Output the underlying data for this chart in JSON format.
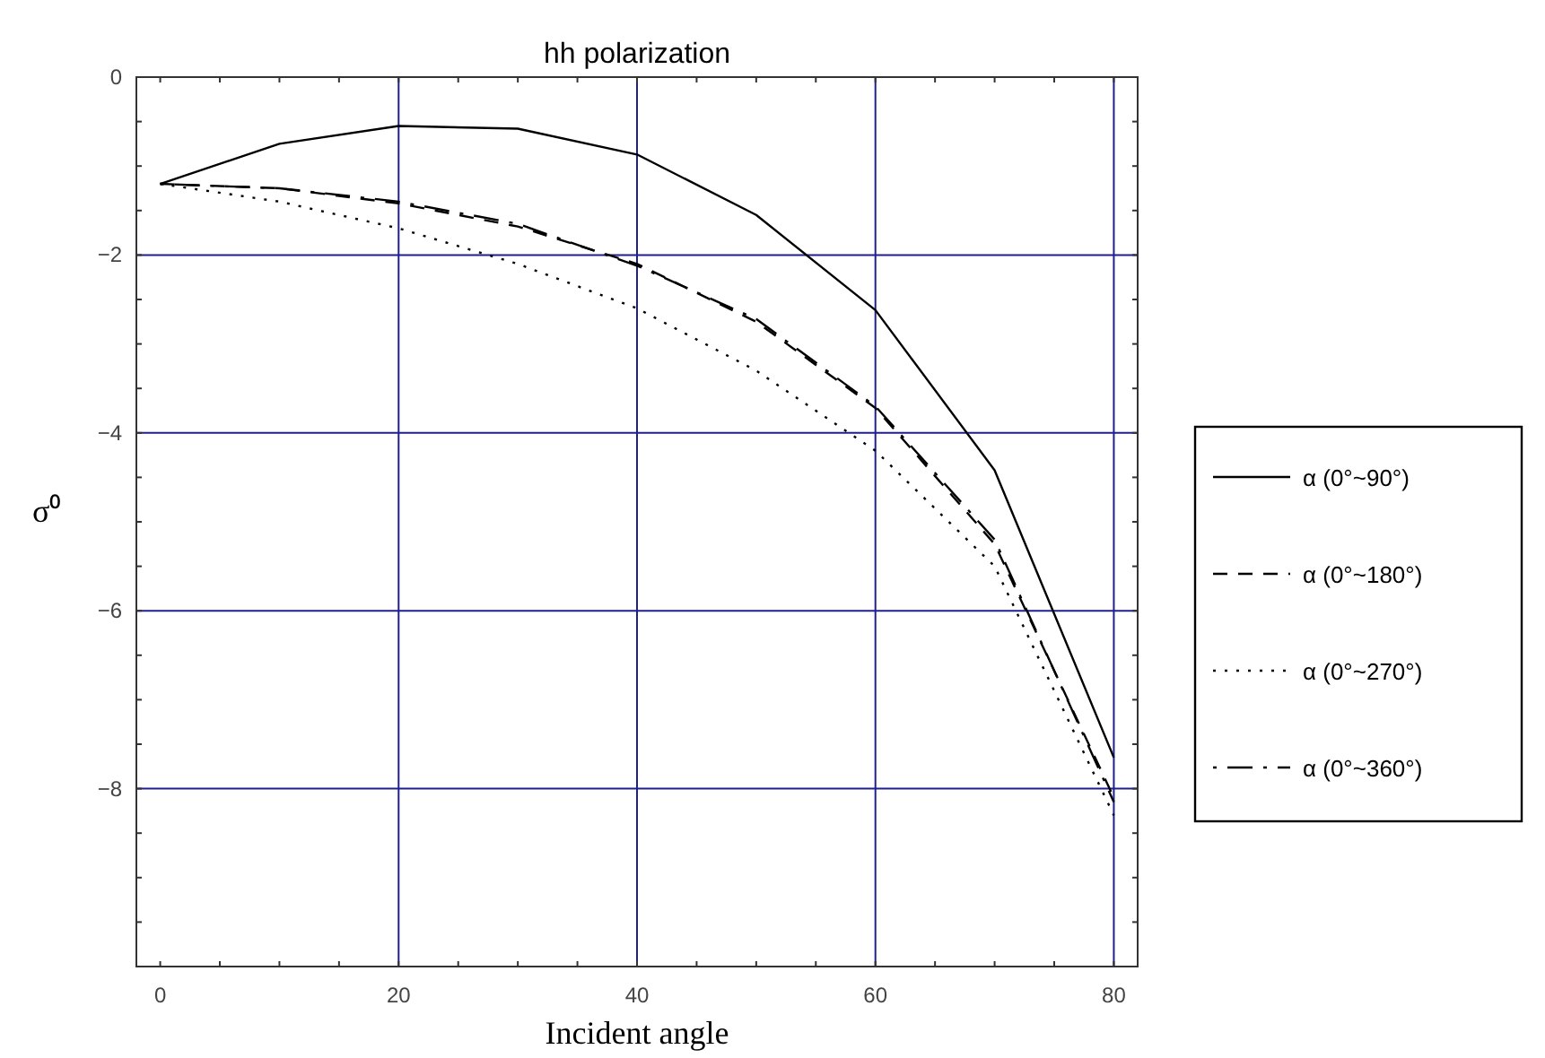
{
  "chart_data": {
    "type": "line",
    "title": "hh polarization",
    "xlabel": "Incident  angle",
    "ylabel": "σ⁰",
    "x": [
      0,
      10,
      20,
      30,
      40,
      50,
      60,
      70,
      80
    ],
    "series": [
      {
        "name": "α (0°~90°)",
        "color": "#000000",
        "line_style": "solid",
        "values": [
          -1.2,
          -0.75,
          -0.55,
          -0.58,
          -0.87,
          -1.55,
          -2.62,
          -4.42,
          -7.65
        ]
      },
      {
        "name": "α (0°~180°)",
        "color": "#000000",
        "line_style": "dashed",
        "values": [
          -1.2,
          -1.25,
          -1.42,
          -1.68,
          -2.1,
          -2.75,
          -3.72,
          -5.25,
          -8.1
        ]
      },
      {
        "name": "α (0°~270°)",
        "color": "#000000",
        "line_style": "dotted",
        "values": [
          -1.2,
          -1.4,
          -1.7,
          -2.1,
          -2.6,
          -3.3,
          -4.2,
          -5.5,
          -8.3
        ]
      },
      {
        "name": "α (0°~360°)",
        "color": "#000000",
        "line_style": "dashdot",
        "values": [
          -1.2,
          -1.25,
          -1.4,
          -1.65,
          -2.12,
          -2.72,
          -3.7,
          -5.2,
          -8.15
        ]
      }
    ],
    "xlim": [
      -2,
      82
    ],
    "xticks": [
      0,
      {
        "value": 5,
        "label": null
      },
      {
        "value": 10,
        "label": null
      },
      {
        "value": 15,
        "label": null
      },
      20,
      {
        "value": 25,
        "label": null
      },
      {
        "value": 30,
        "label": null
      },
      {
        "value": 35,
        "label": null
      },
      40,
      {
        "value": 45,
        "label": null
      },
      {
        "value": 50,
        "label": null
      },
      {
        "value": 55,
        "label": null
      },
      60,
      {
        "value": 65,
        "label": null
      },
      {
        "value": 70,
        "label": null
      },
      {
        "value": 75,
        "label": null
      },
      80
    ],
    "ylim": [
      -10,
      0
    ],
    "yticks": [
      0,
      {
        "value": -0.5,
        "label": null
      },
      {
        "value": -1,
        "label": null
      },
      {
        "value": -1.5,
        "label": null
      },
      -2,
      {
        "value": -2.5,
        "label": null
      },
      {
        "value": -3,
        "label": null
      },
      {
        "value": -3.5,
        "label": null
      },
      -4,
      {
        "value": -4.5,
        "label": null
      },
      {
        "value": -5,
        "label": null
      },
      {
        "value": -5.5,
        "label": null
      },
      -6,
      {
        "value": -6.5,
        "label": null
      },
      {
        "value": -7,
        "label": null
      },
      {
        "value": -7.5,
        "label": null
      },
      -8,
      {
        "value": -8.5,
        "label": null
      },
      {
        "value": -9,
        "label": null
      },
      {
        "value": -9.5,
        "label": null
      }
    ],
    "grid": true,
    "legend": "right"
  }
}
